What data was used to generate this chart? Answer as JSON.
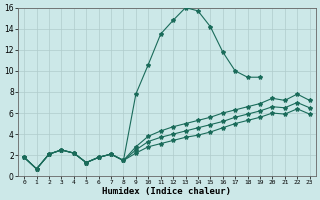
{
  "xlabel": "Humidex (Indice chaleur)",
  "bg_color": "#cce8e8",
  "grid_color": "#b0cccc",
  "line_color": "#1a6b5a",
  "xlim": [
    -0.5,
    23.5
  ],
  "ylim": [
    0,
    16
  ],
  "xticks": [
    0,
    1,
    2,
    3,
    4,
    5,
    6,
    7,
    8,
    9,
    10,
    11,
    12,
    13,
    14,
    15,
    16,
    17,
    18,
    19,
    20,
    21,
    22,
    23
  ],
  "yticks": [
    0,
    2,
    4,
    6,
    8,
    10,
    12,
    14,
    16
  ],
  "series": [
    {
      "x": [
        0,
        1,
        2,
        3,
        4,
        5,
        6,
        7,
        8,
        9,
        10,
        11,
        12,
        13,
        14,
        15,
        16,
        17,
        18,
        19
      ],
      "y": [
        1.8,
        0.7,
        2.1,
        2.5,
        2.2,
        1.3,
        1.8,
        2.1,
        1.5,
        7.8,
        10.6,
        13.5,
        14.8,
        16.0,
        15.7,
        14.2,
        11.8,
        10.0,
        9.4,
        9.4
      ]
    },
    {
      "x": [
        0,
        1,
        2,
        3,
        4,
        5,
        6,
        7,
        8,
        9,
        10,
        11,
        12,
        13,
        14,
        15,
        16,
        17,
        18,
        19,
        20,
        21,
        22,
        23
      ],
      "y": [
        1.8,
        0.7,
        2.1,
        2.5,
        2.2,
        1.3,
        1.8,
        2.1,
        1.5,
        2.8,
        3.8,
        4.3,
        4.7,
        5.0,
        5.3,
        5.6,
        6.0,
        6.3,
        6.6,
        6.9,
        7.4,
        7.2,
        7.8,
        7.2
      ]
    },
    {
      "x": [
        0,
        1,
        2,
        3,
        4,
        5,
        6,
        7,
        8,
        9,
        10,
        11,
        12,
        13,
        14,
        15,
        16,
        17,
        18,
        19,
        20,
        21,
        22,
        23
      ],
      "y": [
        1.8,
        0.7,
        2.1,
        2.5,
        2.2,
        1.3,
        1.8,
        2.1,
        1.5,
        2.5,
        3.3,
        3.7,
        4.0,
        4.3,
        4.6,
        4.9,
        5.2,
        5.6,
        5.9,
        6.2,
        6.6,
        6.5,
        7.0,
        6.5
      ]
    },
    {
      "x": [
        0,
        1,
        2,
        3,
        4,
        5,
        6,
        7,
        8,
        9,
        10,
        11,
        12,
        13,
        14,
        15,
        16,
        17,
        18,
        19,
        20,
        21,
        22,
        23
      ],
      "y": [
        1.8,
        0.7,
        2.1,
        2.5,
        2.2,
        1.3,
        1.8,
        2.1,
        1.5,
        2.2,
        2.8,
        3.1,
        3.4,
        3.7,
        3.9,
        4.2,
        4.6,
        5.0,
        5.3,
        5.6,
        6.0,
        5.9,
        6.4,
        5.9
      ]
    }
  ]
}
